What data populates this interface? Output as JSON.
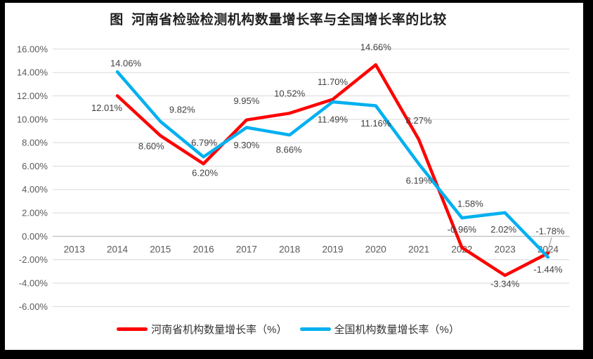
{
  "chart_data": {
    "type": "line",
    "title": "图  河南省检验检测机构数量增长率与全国增长率的比较",
    "categories": [
      "2013",
      "2014",
      "2015",
      "2016",
      "2017",
      "2018",
      "2019",
      "2020",
      "2021",
      "2022",
      "2023",
      "2024"
    ],
    "ylim": [
      -6,
      16
    ],
    "grid": true,
    "legend_position": "bottom",
    "y_axis": {
      "tick_values": [
        16,
        14,
        12,
        10,
        8,
        6,
        4,
        2,
        0,
        -2,
        -4,
        -6
      ],
      "tick_labels": [
        "16.00%",
        "14.00%",
        "12.00%",
        "10.00%",
        "8.00%",
        "6.00%",
        "4.00%",
        "2.00%",
        "0.00%",
        "-2.00%",
        "-4.00%",
        "-6.00%"
      ]
    },
    "series": [
      {
        "name": "河南省机构数量增长率（%）",
        "color": "#FF0000",
        "values": [
          null,
          12.01,
          8.6,
          6.2,
          9.95,
          10.52,
          11.7,
          14.66,
          8.27,
          -0.96,
          -3.34,
          -1.44
        ],
        "labels": [
          null,
          "12.01%",
          "8.60%",
          "6.20%",
          "9.95%",
          "10.52%",
          "11.70%",
          "14.66%",
          "8.27%",
          "-0.96%",
          "-3.34%",
          "-1.44%"
        ],
        "label_offsets": [
          null,
          [
            -15,
            18
          ],
          [
            -13,
            16
          ],
          [
            2,
            14
          ],
          [
            0,
            -26
          ],
          [
            0,
            -27
          ],
          [
            0,
            -24
          ],
          [
            0,
            -24
          ],
          [
            0,
            -26
          ],
          [
            0,
            -25
          ],
          [
            0,
            13
          ],
          [
            0,
            24
          ]
        ]
      },
      {
        "name": "全国机构数量增长率（%）",
        "color": "#00B0F0",
        "values": [
          null,
          14.06,
          9.82,
          6.79,
          9.3,
          8.66,
          11.49,
          11.16,
          6.19,
          1.58,
          2.02,
          -1.78
        ],
        "labels": [
          null,
          "14.06%",
          "9.82%",
          "6.79%",
          "9.30%",
          "8.66%",
          "11.49%",
          "11.16%",
          "6.19%",
          "1.58%",
          "2.02%",
          "-1.78%"
        ],
        "label_offsets": [
          null,
          [
            12,
            -11
          ],
          [
            31,
            -16
          ],
          [
            1,
            -19
          ],
          [
            0,
            26
          ],
          [
            -1,
            22
          ],
          [
            0,
            26
          ],
          [
            0,
            26
          ],
          [
            0,
            25
          ],
          [
            12,
            -19
          ],
          [
            -2,
            25
          ],
          [
            3,
            -36
          ]
        ],
        "leader_line_at": "2024"
      }
    ],
    "colors": {
      "gridline": "#D9D9D9",
      "axis_line": "#BFBFBF",
      "axis_text": "#595959",
      "data_label": "#404040",
      "leader": "#A6A6A6",
      "background": "#FFFFFF",
      "frame": "#000000"
    }
  }
}
